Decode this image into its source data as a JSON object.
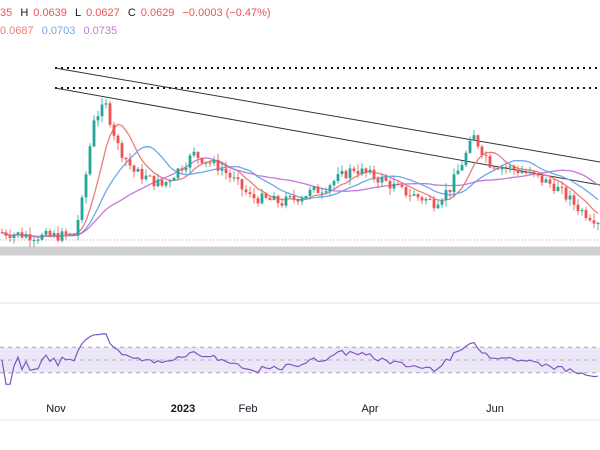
{
  "legend": {
    "ohlc": [
      "35",
      "H",
      "0.0639",
      "L",
      "0.0627",
      "C",
      "0.0629",
      "−0.0003 (−0.47%)"
    ],
    "ma": [
      "0.0687",
      "0.0703",
      "0.0735"
    ]
  },
  "colors": {
    "up": "#26a69a",
    "down": "#ef5350",
    "ma_fast": "#f07b7b",
    "ma_mid": "#6fa8ec",
    "ma_slow": "#c27bd6",
    "rsi": "#7e57c2",
    "rsi_band": "#ece7f8",
    "support_zone": "#c8c8c8",
    "legend_neutral": "#131722"
  },
  "chart_data": [
    {
      "type": "candlestick",
      "x": [
        "Nov",
        "2023",
        "Feb",
        "Apr",
        "Jun"
      ],
      "overlays": [
        "moving averages",
        "descending trendlines",
        "dotted resistance levels",
        "shaded support zone"
      ],
      "grid": false
    },
    {
      "type": "line",
      "indicator": "RSI",
      "bands": [
        "upper",
        "middle",
        "lower"
      ],
      "grid": false
    }
  ]
}
